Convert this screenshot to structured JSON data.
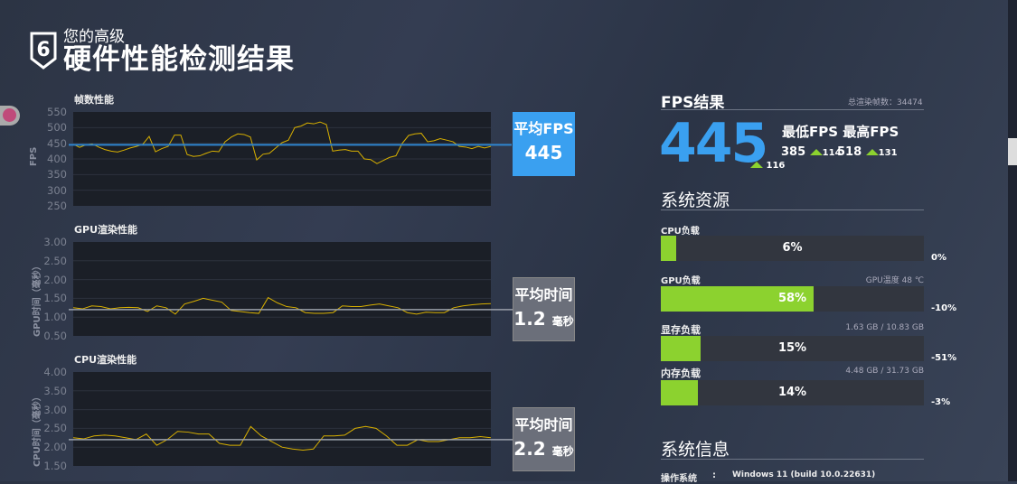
{
  "header": {
    "badge": "6",
    "subtitle": "您的高级",
    "title": "硬件性能检测结果"
  },
  "charts": [
    {
      "title": "帧数性能",
      "ylabel": "FPS",
      "avg_label": "平均FPS",
      "avg_value": "445",
      "avg_unit": "",
      "avg_color": "#3aa0f0"
    },
    {
      "title": "GPU渲染性能",
      "ylabel": "GPU时间（毫秒）",
      "avg_label": "平均时间",
      "avg_value": "1.2",
      "avg_unit": "毫秒",
      "avg_color": "#6b6f7a"
    },
    {
      "title": "CPU渲染性能",
      "ylabel": "CPU时间（毫秒）",
      "avg_label": "平均时间",
      "avg_value": "2.2",
      "avg_unit": "毫秒",
      "avg_color": "#6b6f7a"
    }
  ],
  "chart_data": [
    {
      "type": "line",
      "ylabel": "FPS",
      "ylim": [
        250,
        550
      ],
      "yticks": [
        "550",
        "500",
        "450",
        "400",
        "350",
        "300",
        "250"
      ],
      "avg": 445,
      "grid": true,
      "line_color": "#d8b000",
      "avg_color": "#2f86d0",
      "values": [
        447,
        437,
        445,
        448,
        438,
        430,
        425,
        422,
        428,
        435,
        440,
        447,
        472,
        423,
        433,
        440,
        476,
        476,
        414,
        408,
        410,
        418,
        425,
        423,
        455,
        470,
        480,
        478,
        470,
        397,
        415,
        418,
        435,
        452,
        460,
        500,
        505,
        515,
        512,
        518,
        510,
        425,
        428,
        430,
        425,
        425,
        400,
        398,
        385,
        395,
        405,
        410,
        450,
        475,
        480,
        482,
        455,
        458,
        465,
        460,
        455,
        440,
        438,
        433,
        440,
        435,
        440
      ]
    },
    {
      "type": "line",
      "ylabel": "GPU时间（毫秒）",
      "ylim": [
        0.5,
        3.0
      ],
      "yticks": [
        "3.00",
        "2.50",
        "2.00",
        "1.50",
        "1.00",
        "0.50"
      ],
      "avg": 1.2,
      "grid": true,
      "line_color": "#d8b000",
      "avg_color": "#9aa0aa",
      "values": [
        1.25,
        1.22,
        1.3,
        1.28,
        1.22,
        1.25,
        1.26,
        1.25,
        1.15,
        1.3,
        1.25,
        1.08,
        1.35,
        1.42,
        1.5,
        1.45,
        1.4,
        1.18,
        1.15,
        1.12,
        1.1,
        1.52,
        1.38,
        1.28,
        1.25,
        1.12,
        1.1,
        1.1,
        1.12,
        1.3,
        1.28,
        1.28,
        1.32,
        1.35,
        1.3,
        1.25,
        1.12,
        1.08,
        1.13,
        1.12,
        1.12,
        1.25,
        1.3,
        1.33,
        1.35,
        1.36
      ]
    },
    {
      "type": "line",
      "ylabel": "CPU时间（毫秒）",
      "ylim": [
        1.5,
        4.0
      ],
      "yticks": [
        "4.00",
        "3.50",
        "3.00",
        "2.50",
        "2.00",
        "1.50"
      ],
      "avg": 2.2,
      "grid": true,
      "line_color": "#d8b000",
      "avg_color": "#9aa0aa",
      "values": [
        2.25,
        2.22,
        2.3,
        2.32,
        2.3,
        2.25,
        2.2,
        2.35,
        2.05,
        2.2,
        2.42,
        2.4,
        2.35,
        2.35,
        2.1,
        2.05,
        2.05,
        2.55,
        2.3,
        2.15,
        2.0,
        1.95,
        1.92,
        1.95,
        2.3,
        2.3,
        2.32,
        2.5,
        2.55,
        2.5,
        2.3,
        2.05,
        2.05,
        2.2,
        2.15,
        2.15,
        2.2,
        2.25,
        2.25,
        2.28,
        2.25
      ]
    }
  ],
  "fps": {
    "title": "FPS结果",
    "total_label": "总渲染帧数：34474",
    "avg": "445",
    "avg_delta": "116",
    "min_max_label": "最低FPS 最高FPS",
    "min": "385",
    "min_delta": "114",
    "max": "518",
    "max_delta": "131"
  },
  "resources": {
    "title": "系统资源",
    "items": [
      {
        "label": "CPU负载",
        "info": "",
        "percent": 6,
        "pct_text": "6%",
        "delta": "0%"
      },
      {
        "label": "GPU负载",
        "info": "GPU温度 48 ℃",
        "percent": 58,
        "pct_text": "58%",
        "delta": "-10%"
      },
      {
        "label": "显存负载",
        "info": "1.63 GB / 10.83 GB",
        "percent": 15,
        "pct_text": "15%",
        "delta": "-51%"
      },
      {
        "label": "内存负载",
        "info": "4.48 GB / 31.73 GB",
        "percent": 14,
        "pct_text": "14%",
        "delta": "-3%"
      }
    ]
  },
  "sysinfo": {
    "title": "系统信息",
    "os_label": "操作系统",
    "sep": ":",
    "os_value": "Windows 11 (build 10.0.22631)"
  },
  "colors": {
    "accent": "#3aa0f0",
    "bar_fill": "#8cd22f",
    "line": "#d8b000"
  }
}
